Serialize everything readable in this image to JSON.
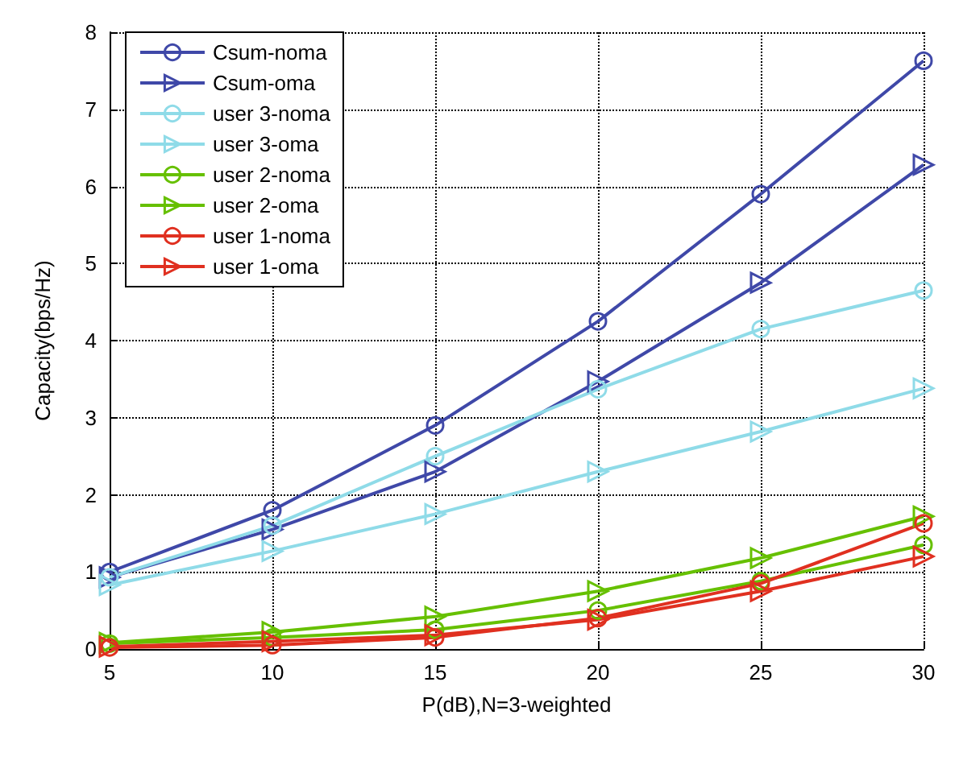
{
  "chart_data": {
    "type": "line",
    "xlabel": "P(dB),N=3-weighted",
    "ylabel": "Capacity(bps/Hz)",
    "x": [
      5,
      10,
      15,
      20,
      25,
      30
    ],
    "xlim": [
      5,
      30
    ],
    "xticks": [
      5,
      10,
      15,
      20,
      25,
      30
    ],
    "ylim": [
      0,
      8
    ],
    "yticks": [
      0,
      1,
      2,
      3,
      4,
      5,
      6,
      7,
      8
    ],
    "grid": true,
    "legend": "top left",
    "series": [
      {
        "name": "Csum-noma",
        "color": "#3f48a8",
        "marker": "circle",
        "values": [
          1.0,
          1.8,
          2.9,
          4.25,
          5.9,
          7.63
        ]
      },
      {
        "name": "Csum-oma",
        "color": "#3f48a8",
        "marker": "triangle",
        "values": [
          0.93,
          1.55,
          2.3,
          3.47,
          4.75,
          6.28
        ]
      },
      {
        "name": "user 3-noma",
        "color": "#8fdbe8",
        "marker": "circle",
        "values": [
          0.93,
          1.6,
          2.5,
          3.37,
          4.15,
          4.65
        ]
      },
      {
        "name": "user 3-oma",
        "color": "#8fdbe8",
        "marker": "triangle",
        "values": [
          0.83,
          1.27,
          1.75,
          2.3,
          2.82,
          3.38
        ]
      },
      {
        "name": "user 2-noma",
        "color": "#66c000",
        "marker": "circle",
        "values": [
          0.07,
          0.15,
          0.25,
          0.5,
          0.88,
          1.35
        ]
      },
      {
        "name": "user 2-oma",
        "color": "#66c000",
        "marker": "triangle",
        "values": [
          0.08,
          0.22,
          0.42,
          0.75,
          1.18,
          1.72
        ]
      },
      {
        "name": "user 1-noma",
        "color": "#e03020",
        "marker": "circle",
        "values": [
          0.02,
          0.05,
          0.15,
          0.4,
          0.85,
          1.63
        ]
      },
      {
        "name": "user 1-oma",
        "color": "#e03020",
        "marker": "triangle",
        "values": [
          0.03,
          0.1,
          0.18,
          0.38,
          0.75,
          1.2
        ]
      }
    ]
  }
}
